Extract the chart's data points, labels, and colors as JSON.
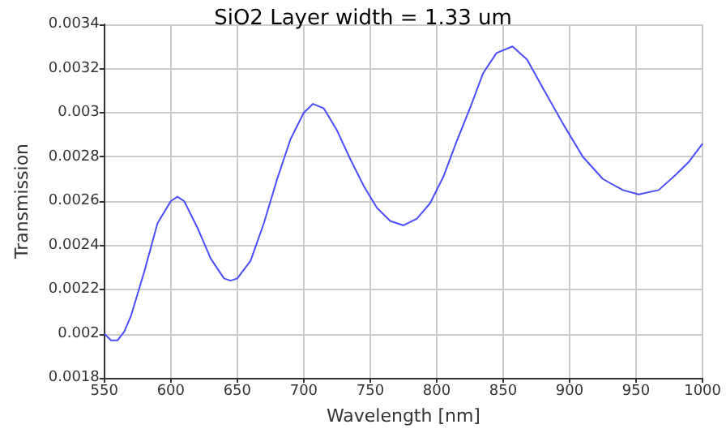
{
  "chart_data": {
    "type": "line",
    "title": "SiO2 Layer width = 1.33 um",
    "xlabel": "Wavelength [nm]",
    "ylabel": "Transmission",
    "xlim": [
      550,
      1000
    ],
    "xticks": [
      550,
      600,
      650,
      700,
      750,
      800,
      850,
      900,
      950,
      1000
    ],
    "ylim": [
      0.0018,
      0.0034
    ],
    "yticks": [
      0.0018,
      0.002,
      0.0022,
      0.0024,
      0.0026,
      0.0028,
      0.003,
      0.0032,
      0.0034
    ],
    "grid": true,
    "marker": "none",
    "line_style": "solid",
    "series": [
      {
        "color": "#4c4cff",
        "x": [
          550,
          555,
          560,
          565,
          570,
          580,
          590,
          600,
          605,
          610,
          620,
          630,
          640,
          645,
          650,
          660,
          670,
          680,
          690,
          700,
          707,
          715,
          725,
          735,
          745,
          755,
          765,
          775,
          785,
          795,
          805,
          815,
          825,
          835,
          845,
          857,
          868,
          880,
          895,
          910,
          925,
          940,
          952,
          967,
          980,
          990,
          1000
        ],
        "values": [
          0.002,
          0.00197,
          0.00197,
          0.00201,
          0.00208,
          0.00228,
          0.0025,
          0.0026,
          0.00262,
          0.0026,
          0.00248,
          0.00234,
          0.00225,
          0.00224,
          0.00225,
          0.00233,
          0.0025,
          0.0027,
          0.00288,
          0.003,
          0.00304,
          0.00302,
          0.00292,
          0.00279,
          0.00267,
          0.00257,
          0.00251,
          0.00249,
          0.00252,
          0.00259,
          0.00271,
          0.00287,
          0.00302,
          0.00318,
          0.00327,
          0.0033,
          0.00324,
          0.00311,
          0.00295,
          0.0028,
          0.0027,
          0.00265,
          0.00263,
          0.00265,
          0.00272,
          0.00278,
          0.00286
        ]
      }
    ]
  }
}
